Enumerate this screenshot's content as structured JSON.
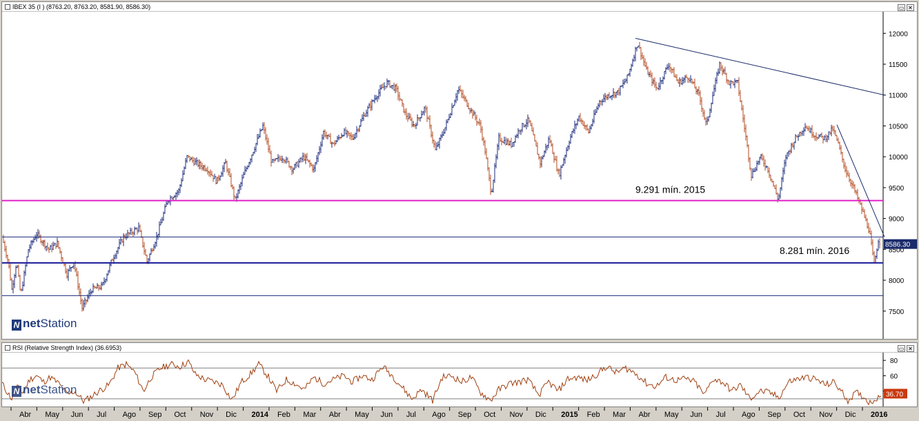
{
  "main_title": "IBEX 35 (I ) (8763.20, 8763.20, 8581.90, 8586.30)",
  "rsi_title": "RSI (Relative Strength Index) (36.6953)",
  "logo_prefix": "net",
  "logo_suffix": "Station",
  "window_buttons": [
    "▭",
    "✕"
  ],
  "last_price": "8586.30",
  "rsi_last": "36.70",
  "colors": {
    "up": "#1a2a7a",
    "down": "#b34a1f",
    "magenta": "#e020c8",
    "support": "#1a1a9a",
    "trend": "#1a2a6a",
    "rsi": "#a04010",
    "badge": "#1a2a6a",
    "rsi_badge": "#c83a10"
  },
  "chart_data": [
    {
      "type": "ohlc",
      "title": "IBEX 35 (I ) (8763.20, 8763.20, 8581.90, 8586.30)",
      "price_axis_ticks": [
        7500,
        8000,
        8500,
        9000,
        9500,
        10000,
        10500,
        11000,
        11500,
        12000
      ],
      "ylim": [
        7050,
        12350
      ],
      "time_labels": [
        "Abr",
        "May",
        "Jun",
        "Jul",
        "Ago",
        "Sep",
        "Oct",
        "Nov",
        "Dic",
        "2014",
        "Feb",
        "Mar",
        "Abr",
        "May",
        "Jun",
        "Jul",
        "Ago",
        "Sep",
        "Oct",
        "Nov",
        "Dic",
        "2015",
        "Feb",
        "Mar",
        "Abr",
        "May",
        "Jun",
        "Jul",
        "Ago",
        "Sep",
        "Oct",
        "Nov",
        "Dic",
        "2016"
      ],
      "anchors": [
        [
          0,
          8700
        ],
        [
          9,
          8300
        ],
        [
          14,
          7850
        ],
        [
          21,
          8300
        ],
        [
          27,
          7750
        ],
        [
          38,
          8500
        ],
        [
          50,
          8750
        ],
        [
          68,
          8500
        ],
        [
          80,
          8600
        ],
        [
          94,
          8100
        ],
        [
          104,
          8300
        ],
        [
          116,
          7550
        ],
        [
          130,
          7850
        ],
        [
          145,
          7900
        ],
        [
          160,
          8350
        ],
        [
          176,
          8700
        ],
        [
          198,
          8850
        ],
        [
          210,
          8300
        ],
        [
          224,
          8700
        ],
        [
          240,
          9300
        ],
        [
          256,
          9450
        ],
        [
          268,
          10000
        ],
        [
          281,
          9900
        ],
        [
          298,
          9800
        ],
        [
          311,
          9600
        ],
        [
          324,
          9900
        ],
        [
          338,
          9300
        ],
        [
          350,
          9700
        ],
        [
          364,
          10100
        ],
        [
          378,
          10500
        ],
        [
          391,
          9900
        ],
        [
          407,
          10000
        ],
        [
          421,
          9800
        ],
        [
          437,
          10000
        ],
        [
          452,
          9800
        ],
        [
          466,
          10400
        ],
        [
          480,
          10200
        ],
        [
          495,
          10400
        ],
        [
          508,
          10300
        ],
        [
          526,
          10700
        ],
        [
          543,
          11000
        ],
        [
          558,
          11200
        ],
        [
          571,
          11100
        ],
        [
          584,
          10700
        ],
        [
          597,
          10500
        ],
        [
          613,
          10800
        ],
        [
          628,
          10100
        ],
        [
          643,
          10500
        ],
        [
          661,
          11100
        ],
        [
          677,
          10800
        ],
        [
          693,
          10500
        ],
        [
          700,
          10100
        ],
        [
          709,
          9400
        ],
        [
          720,
          10300
        ],
        [
          738,
          10200
        ],
        [
          750,
          10450
        ],
        [
          763,
          10600
        ],
        [
          780,
          9900
        ],
        [
          793,
          10300
        ],
        [
          807,
          9700
        ],
        [
          823,
          10300
        ],
        [
          836,
          10650
        ],
        [
          850,
          10400
        ],
        [
          866,
          10900
        ],
        [
          879,
          11000
        ],
        [
          893,
          11050
        ],
        [
          907,
          11300
        ],
        [
          921,
          11850
        ],
        [
          934,
          11400
        ],
        [
          949,
          11100
        ],
        [
          966,
          11500
        ],
        [
          980,
          11200
        ],
        [
          995,
          11300
        ],
        [
          1010,
          11000
        ],
        [
          1021,
          10500
        ],
        [
          1028,
          10900
        ],
        [
          1040,
          11500
        ],
        [
          1054,
          11200
        ],
        [
          1066,
          11200
        ],
        [
          1077,
          10400
        ],
        [
          1086,
          9700
        ],
        [
          1099,
          10000
        ],
        [
          1110,
          9800
        ],
        [
          1125,
          9300
        ],
        [
          1136,
          10000
        ],
        [
          1150,
          10300
        ],
        [
          1164,
          10500
        ],
        [
          1178,
          10350
        ],
        [
          1192,
          10300
        ],
        [
          1204,
          10450
        ],
        [
          1212,
          10200
        ],
        [
          1222,
          9800
        ],
        [
          1234,
          9500
        ],
        [
          1246,
          9150
        ],
        [
          1257,
          8800
        ],
        [
          1264,
          8250
        ],
        [
          1270,
          8650
        ],
        [
          1275,
          8586
        ]
      ],
      "horizontal_lines": [
        {
          "value": 9291,
          "role": "magenta",
          "label": "9.291 mín. 2015"
        },
        {
          "value": 8281,
          "role": "support",
          "label": "8.281 mín. 2016"
        },
        {
          "value": 8700,
          "role": "thin"
        },
        {
          "value": 7750,
          "role": "thin"
        }
      ],
      "trendlines": [
        {
          "from": [
            918,
            11920
          ],
          "to": [
            1279,
            11000
          ]
        },
        {
          "from": [
            1210,
            10520
          ],
          "to": [
            1279,
            8700
          ]
        }
      ]
    },
    {
      "type": "line",
      "title": "RSI (Relative Strength Index) (36.6953)",
      "axis_ticks": [
        40,
        60,
        80
      ],
      "ylim": [
        20,
        90
      ],
      "anchors": [
        [
          0,
          50
        ],
        [
          8,
          38
        ],
        [
          14,
          30
        ],
        [
          22,
          45
        ],
        [
          30,
          38
        ],
        [
          40,
          55
        ],
        [
          50,
          60
        ],
        [
          60,
          52
        ],
        [
          70,
          58
        ],
        [
          82,
          50
        ],
        [
          95,
          35
        ],
        [
          105,
          40
        ],
        [
          118,
          27
        ],
        [
          128,
          32
        ],
        [
          140,
          40
        ],
        [
          155,
          48
        ],
        [
          168,
          70
        ],
        [
          180,
          75
        ],
        [
          192,
          65
        ],
        [
          205,
          40
        ],
        [
          216,
          58
        ],
        [
          230,
          70
        ],
        [
          245,
          75
        ],
        [
          258,
          72
        ],
        [
          270,
          78
        ],
        [
          280,
          62
        ],
        [
          294,
          55
        ],
        [
          308,
          52
        ],
        [
          320,
          48
        ],
        [
          333,
          28
        ],
        [
          347,
          52
        ],
        [
          360,
          62
        ],
        [
          372,
          75
        ],
        [
          385,
          60
        ],
        [
          398,
          40
        ],
        [
          412,
          55
        ],
        [
          424,
          50
        ],
        [
          438,
          42
        ],
        [
          452,
          58
        ],
        [
          466,
          50
        ],
        [
          480,
          55
        ],
        [
          495,
          60
        ],
        [
          508,
          52
        ],
        [
          522,
          60
        ],
        [
          536,
          55
        ],
        [
          552,
          72
        ],
        [
          566,
          60
        ],
        [
          580,
          45
        ],
        [
          594,
          30
        ],
        [
          608,
          42
        ],
        [
          624,
          28
        ],
        [
          638,
          58
        ],
        [
          652,
          60
        ],
        [
          666,
          52
        ],
        [
          680,
          58
        ],
        [
          694,
          38
        ],
        [
          708,
          28
        ],
        [
          720,
          42
        ],
        [
          736,
          50
        ],
        [
          750,
          52
        ],
        [
          762,
          55
        ],
        [
          778,
          35
        ],
        [
          792,
          52
        ],
        [
          806,
          40
        ],
        [
          820,
          56
        ],
        [
          834,
          58
        ],
        [
          848,
          54
        ],
        [
          862,
          62
        ],
        [
          876,
          72
        ],
        [
          890,
          64
        ],
        [
          904,
          70
        ],
        [
          920,
          62
        ],
        [
          934,
          50
        ],
        [
          948,
          46
        ],
        [
          962,
          58
        ],
        [
          976,
          54
        ],
        [
          990,
          56
        ],
        [
          1004,
          52
        ],
        [
          1018,
          35
        ],
        [
          1030,
          56
        ],
        [
          1044,
          52
        ],
        [
          1058,
          40
        ],
        [
          1070,
          48
        ],
        [
          1084,
          30
        ],
        [
          1098,
          40
        ],
        [
          1112,
          38
        ],
        [
          1126,
          32
        ],
        [
          1140,
          52
        ],
        [
          1154,
          56
        ],
        [
          1168,
          58
        ],
        [
          1180,
          55
        ],
        [
          1194,
          48
        ],
        [
          1206,
          52
        ],
        [
          1216,
          40
        ],
        [
          1226,
          28
        ],
        [
          1238,
          38
        ],
        [
          1248,
          33
        ],
        [
          1258,
          25
        ],
        [
          1266,
          30
        ],
        [
          1275,
          37
        ]
      ]
    }
  ]
}
